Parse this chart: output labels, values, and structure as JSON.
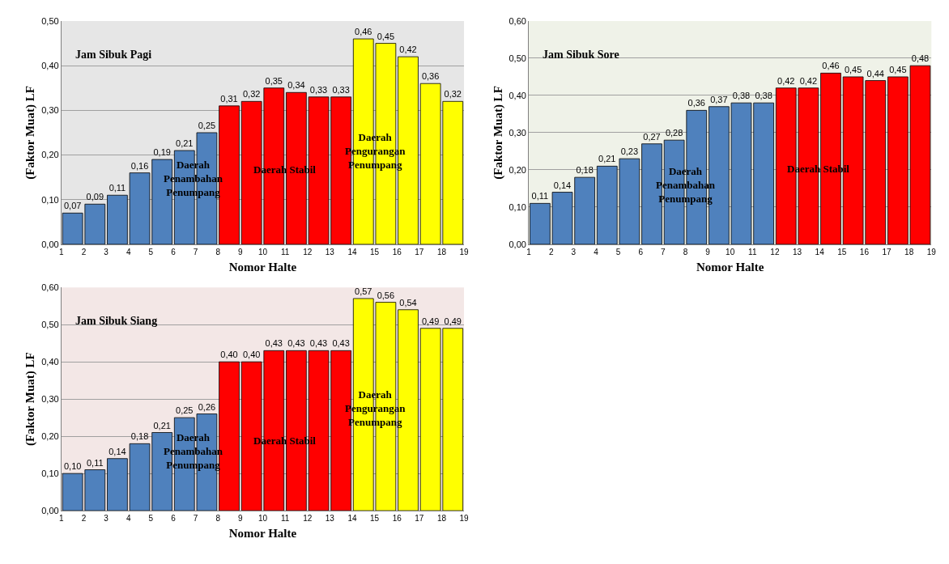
{
  "chart_data": [
    {
      "type": "bar",
      "title": "Jam Sibuk Pagi",
      "xlabel": "Nomor Halte",
      "ylabel": "(Faktor Muat) LF",
      "x": [
        1.5,
        2.5,
        3.5,
        4.5,
        5.5,
        6.5,
        7.5,
        8.5,
        9.5,
        10.5,
        11.5,
        12.5,
        13.5,
        14.5,
        15.5,
        16.5,
        17.5,
        18.5
      ],
      "values": [
        0.07,
        0.09,
        0.11,
        0.16,
        0.19,
        0.21,
        0.25,
        0.31,
        0.32,
        0.35,
        0.34,
        0.33,
        0.33,
        0.46,
        0.45,
        0.42,
        0.36,
        0.32
      ],
      "value_labels": [
        "0,07",
        "0,09",
        "0,11",
        "0,16",
        "0,19",
        "0,21",
        "0,25",
        "0,31",
        "0,32",
        "0,35",
        "0,34",
        "0,33",
        "0,33",
        "0,46",
        "0,45",
        "0,42",
        "0,36",
        "0,32"
      ],
      "colors": [
        "#4f81bd",
        "#4f81bd",
        "#4f81bd",
        "#4f81bd",
        "#4f81bd",
        "#4f81bd",
        "#4f81bd",
        "#ff0000",
        "#ff0000",
        "#ff0000",
        "#ff0000",
        "#ff0000",
        "#ff0000",
        "#ffff00",
        "#ffff00",
        "#ffff00",
        "#ffff00",
        "#ffff00"
      ],
      "xlim": [
        1,
        19
      ],
      "xticks": [
        1,
        2,
        3,
        4,
        5,
        6,
        7,
        8,
        9,
        10,
        11,
        12,
        13,
        14,
        15,
        16,
        17,
        18,
        19
      ],
      "ylim": [
        0,
        0.5
      ],
      "yticks": [
        {
          "value": 0,
          "label": "0,00"
        },
        {
          "value": 0.1,
          "label": "0,10"
        },
        {
          "value": 0.2,
          "label": "0,20"
        },
        {
          "value": 0.3,
          "label": "0,30"
        },
        {
          "value": 0.4,
          "label": "0,40"
        },
        {
          "value": 0.5,
          "label": "0,50"
        }
      ],
      "grid": "y",
      "annotations": [
        "Daerah\nPenambahan\nPenumpang",
        "Daerah Stabil",
        "Daerah\nPengurangan\nPenumpang"
      ]
    },
    {
      "type": "bar",
      "title": "Jam Sibuk Sore",
      "xlabel": "Nomor Halte",
      "ylabel": "(Faktor Muat) LF",
      "x": [
        1.5,
        2.5,
        3.5,
        4.5,
        5.5,
        6.5,
        7.5,
        8.5,
        9.5,
        10.5,
        11.5,
        12.5,
        13.5,
        14.5,
        15.5,
        16.5,
        17.5,
        18.5
      ],
      "values": [
        0.11,
        0.14,
        0.18,
        0.21,
        0.23,
        0.27,
        0.28,
        0.36,
        0.37,
        0.38,
        0.38,
        0.42,
        0.42,
        0.46,
        0.45,
        0.44,
        0.45,
        0.48
      ],
      "value_labels": [
        "0,11",
        "0,14",
        "0,18",
        "0,21",
        "0,23",
        "0,27",
        "0,28",
        "0,36",
        "0,37",
        "0,38",
        "0,38",
        "0,42",
        "0,42",
        "0,46",
        "0,45",
        "0,44",
        "0,45",
        "0,48"
      ],
      "colors": [
        "#4f81bd",
        "#4f81bd",
        "#4f81bd",
        "#4f81bd",
        "#4f81bd",
        "#4f81bd",
        "#4f81bd",
        "#4f81bd",
        "#4f81bd",
        "#4f81bd",
        "#4f81bd",
        "#ff0000",
        "#ff0000",
        "#ff0000",
        "#ff0000",
        "#ff0000",
        "#ff0000",
        "#ff0000"
      ],
      "xlim": [
        1,
        19
      ],
      "xticks": [
        1,
        2,
        3,
        4,
        5,
        6,
        7,
        8,
        9,
        10,
        11,
        12,
        13,
        14,
        15,
        16,
        17,
        18,
        19
      ],
      "ylim": [
        0,
        0.6
      ],
      "yticks": [
        {
          "value": 0,
          "label": "0,00"
        },
        {
          "value": 0.1,
          "label": "0,10"
        },
        {
          "value": 0.2,
          "label": "0,20"
        },
        {
          "value": 0.3,
          "label": "0,30"
        },
        {
          "value": 0.4,
          "label": "0,40"
        },
        {
          "value": 0.5,
          "label": "0,50"
        },
        {
          "value": 0.6,
          "label": "0,60"
        }
      ],
      "grid": "y",
      "annotations": [
        "Daerah\nPenambahan\nPenumpang",
        "Daerah Stabil"
      ]
    },
    {
      "type": "bar",
      "title": "Jam Sibuk Siang",
      "xlabel": "Nomor Halte",
      "ylabel": "(Faktor Muat) LF",
      "x": [
        1.5,
        2.5,
        3.5,
        4.5,
        5.5,
        6.5,
        7.5,
        8.5,
        9.5,
        10.5,
        11.5,
        12.5,
        13.5,
        14.5,
        15.5,
        16.5,
        17.5,
        18.5
      ],
      "values": [
        0.1,
        0.11,
        0.14,
        0.18,
        0.21,
        0.25,
        0.26,
        0.4,
        0.4,
        0.43,
        0.43,
        0.43,
        0.43,
        0.57,
        0.56,
        0.54,
        0.49,
        0.49
      ],
      "value_labels": [
        "0,10",
        "0,11",
        "0,14",
        "0,18",
        "0,21",
        "0,25",
        "0,26",
        "0,40",
        "0,40",
        "0,43",
        "0,43",
        "0,43",
        "0,43",
        "0,57",
        "0,56",
        "0,54",
        "0,49",
        "0,49"
      ],
      "colors": [
        "#4f81bd",
        "#4f81bd",
        "#4f81bd",
        "#4f81bd",
        "#4f81bd",
        "#4f81bd",
        "#4f81bd",
        "#ff0000",
        "#ff0000",
        "#ff0000",
        "#ff0000",
        "#ff0000",
        "#ff0000",
        "#ffff00",
        "#ffff00",
        "#ffff00",
        "#ffff00",
        "#ffff00"
      ],
      "xlim": [
        1,
        19
      ],
      "xticks": [
        1,
        2,
        3,
        4,
        5,
        6,
        7,
        8,
        9,
        10,
        11,
        12,
        13,
        14,
        15,
        16,
        17,
        18,
        19
      ],
      "ylim": [
        0,
        0.6
      ],
      "yticks": [
        {
          "value": 0,
          "label": "0,00"
        },
        {
          "value": 0.1,
          "label": "0,10"
        },
        {
          "value": 0.2,
          "label": "0,20"
        },
        {
          "value": 0.3,
          "label": "0,30"
        },
        {
          "value": 0.4,
          "label": "0,40"
        },
        {
          "value": 0.5,
          "label": "0,50"
        },
        {
          "value": 0.6,
          "label": "0,60"
        }
      ],
      "grid": "y",
      "annotations": [
        "Daerah\nPenambahan\nPenumpang",
        "Daerah Stabil",
        "Daerah\nPengurangan\nPenumpang"
      ]
    }
  ]
}
